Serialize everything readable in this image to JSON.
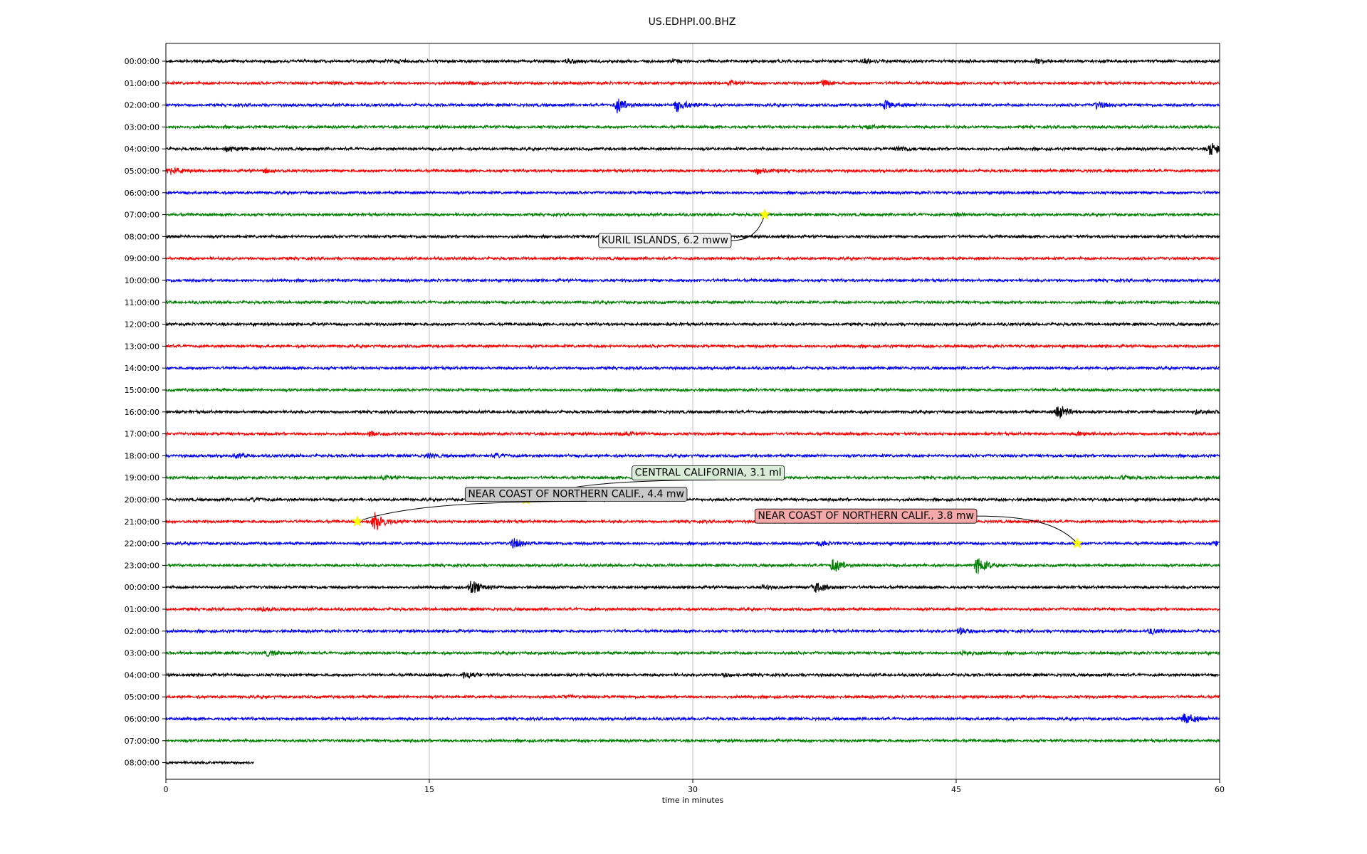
{
  "chart_data": {
    "type": "line",
    "title": "US.EDHPI.00.BHZ",
    "xlabel": "time in minutes",
    "ylabel": "",
    "xlim": [
      0,
      60
    ],
    "xticks": [
      0,
      15,
      30,
      45,
      60
    ],
    "grid": "vertical",
    "legend": "none",
    "colors": [
      "#000000",
      "#ff0000",
      "#0000ff",
      "#008000"
    ],
    "row_labels": [
      "00:00:00",
      "01:00:00",
      "02:00:00",
      "03:00:00",
      "04:00:00",
      "05:00:00",
      "06:00:00",
      "07:00:00",
      "08:00:00",
      "09:00:00",
      "10:00:00",
      "11:00:00",
      "12:00:00",
      "13:00:00",
      "14:00:00",
      "15:00:00",
      "16:00:00",
      "17:00:00",
      "18:00:00",
      "19:00:00",
      "20:00:00",
      "21:00:00",
      "22:00:00",
      "23:00:00",
      "00:00:00",
      "01:00:00",
      "02:00:00",
      "03:00:00",
      "04:00:00",
      "05:00:00",
      "06:00:00",
      "07:00:00",
      "08:00:00"
    ],
    "trace_end_minutes": [
      60,
      60,
      60,
      60,
      60,
      60,
      60,
      60,
      60,
      60,
      60,
      60,
      60,
      60,
      60,
      60,
      60,
      60,
      60,
      60,
      60,
      60,
      60,
      60,
      60,
      60,
      60,
      60,
      60,
      60,
      60,
      60,
      5
    ],
    "bursts": [
      {
        "row": 0,
        "t": 13.3,
        "amp": 0.25
      },
      {
        "row": 0,
        "t": 22.8,
        "amp": 0.3
      },
      {
        "row": 0,
        "t": 28.9,
        "amp": 0.3
      },
      {
        "row": 0,
        "t": 39.8,
        "amp": 0.3
      },
      {
        "row": 0,
        "t": 49.6,
        "amp": 0.35
      },
      {
        "row": 1,
        "t": 9.6,
        "amp": 0.25
      },
      {
        "row": 1,
        "t": 16.9,
        "amp": 0.3
      },
      {
        "row": 1,
        "t": 32.1,
        "amp": 0.35
      },
      {
        "row": 1,
        "t": 37.4,
        "amp": 0.5
      },
      {
        "row": 2,
        "t": 25.7,
        "amp": 1.5
      },
      {
        "row": 2,
        "t": 29.1,
        "amp": 1.2
      },
      {
        "row": 2,
        "t": 41.0,
        "amp": 0.8
      },
      {
        "row": 2,
        "t": 53.0,
        "amp": 0.6
      },
      {
        "row": 3,
        "t": 40.0,
        "amp": 0.3
      },
      {
        "row": 4,
        "t": 3.5,
        "amp": 0.5
      },
      {
        "row": 4,
        "t": 41.7,
        "amp": 0.5
      },
      {
        "row": 4,
        "t": 59.5,
        "amp": 1.4
      },
      {
        "row": 5,
        "t": 0.2,
        "amp": 0.8
      },
      {
        "row": 5,
        "t": 5.7,
        "amp": 0.4
      },
      {
        "row": 5,
        "t": 33.7,
        "amp": 0.6
      },
      {
        "row": 7,
        "t": 45.0,
        "amp": 0.3
      },
      {
        "row": 16,
        "t": 50.8,
        "amp": 1.4
      },
      {
        "row": 16,
        "t": 58.7,
        "amp": 0.4
      },
      {
        "row": 17,
        "t": 11.6,
        "amp": 0.4
      },
      {
        "row": 17,
        "t": 26.0,
        "amp": 0.4
      },
      {
        "row": 17,
        "t": 52.0,
        "amp": 0.4
      },
      {
        "row": 18,
        "t": 4.0,
        "amp": 0.4
      },
      {
        "row": 18,
        "t": 14.9,
        "amp": 0.4
      },
      {
        "row": 18,
        "t": 18.8,
        "amp": 0.35
      },
      {
        "row": 19,
        "t": 12.3,
        "amp": 0.3
      },
      {
        "row": 19,
        "t": 54.5,
        "amp": 0.35
      },
      {
        "row": 20,
        "t": 5.0,
        "amp": 0.3
      },
      {
        "row": 21,
        "t": 11.9,
        "amp": 1.8
      },
      {
        "row": 22,
        "t": 19.8,
        "amp": 0.9
      },
      {
        "row": 22,
        "t": 37.2,
        "amp": 0.4
      },
      {
        "row": 22,
        "t": 59.8,
        "amp": 0.4
      },
      {
        "row": 23,
        "t": 38.0,
        "amp": 1.4
      },
      {
        "row": 23,
        "t": 46.2,
        "amp": 1.6
      },
      {
        "row": 24,
        "t": 17.4,
        "amp": 1.4
      },
      {
        "row": 24,
        "t": 36.9,
        "amp": 1.2
      },
      {
        "row": 24,
        "t": 34.0,
        "amp": 0.3
      },
      {
        "row": 25,
        "t": 5.5,
        "amp": 0.35
      },
      {
        "row": 26,
        "t": 45.2,
        "amp": 0.7
      },
      {
        "row": 26,
        "t": 56.1,
        "amp": 0.5
      },
      {
        "row": 27,
        "t": 5.8,
        "amp": 0.5
      },
      {
        "row": 27,
        "t": 45.4,
        "amp": 0.5
      },
      {
        "row": 28,
        "t": 17.0,
        "amp": 0.6
      },
      {
        "row": 28,
        "t": 31.8,
        "amp": 0.3
      },
      {
        "row": 29,
        "t": 22.7,
        "amp": 0.3
      },
      {
        "row": 30,
        "t": 58.0,
        "amp": 1.3
      }
    ],
    "events": [
      {
        "label": "KURIL ISLANDS, 6.2 mww",
        "row": 7,
        "t": 34.1,
        "fill": "#eeeeee",
        "box_t": 24.6,
        "box_row": 8.15
      },
      {
        "label": "CENTRAL CALIFORNIA, 3.1 ml",
        "row": 20,
        "t": 20.5,
        "fill": "#d8ecd8",
        "box_t": 26.5,
        "box_row": 18.75
      },
      {
        "label": "NEAR COAST OF NORTHERN CALIF., 4.4 mw",
        "row": 21,
        "t": 10.9,
        "fill": "#c8c8c8",
        "box_t": 17.0,
        "box_row": 19.72
      },
      {
        "label": "NEAR COAST OF NORTHERN CALIF., 3.8 mw",
        "row": 22,
        "t": 51.9,
        "fill": "#f4a8a8",
        "box_t": 33.5,
        "box_row": 20.72
      }
    ]
  }
}
